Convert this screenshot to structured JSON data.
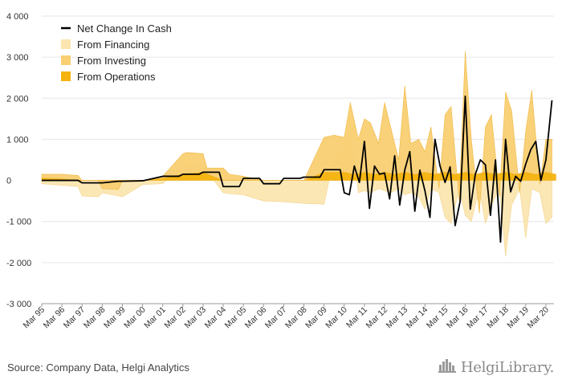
{
  "source": "Source: Company Data, Helgi Analytics",
  "logo": {
    "text": "HelgiLibrary.",
    "icon": "city-skyline-icon"
  },
  "colors": {
    "financing": "#fbe6b0",
    "investing": "#f9cf72",
    "operations": "#f4b30f",
    "net": "#000000",
    "grid": "#e6e6e6",
    "axis": "#999999"
  },
  "chart_data": {
    "type": "area",
    "title": "",
    "xlabel": "",
    "ylabel": "",
    "ylim": [
      -3000,
      4000
    ],
    "yticks": [
      "4 000",
      "3 000",
      "2 000",
      "1 000",
      "0",
      "-1 000",
      "-2 000",
      "-3 000"
    ],
    "ytick_values": [
      4000,
      3000,
      2000,
      1000,
      0,
      -1000,
      -2000,
      -3000
    ],
    "xticks": [
      "Mar 95",
      "Mar 96",
      "Mar 97",
      "Mar 98",
      "Mar 99",
      "Mar 00",
      "Mar 01",
      "Mar 02",
      "Mar 03",
      "Mar 04",
      "Mar 05",
      "Mar 06",
      "Mar 07",
      "Mar 08",
      "Mar 09",
      "Mar 10",
      "Mar 11",
      "Mar 12",
      "Mar 13",
      "Mar 14",
      "Mar 15",
      "Mar 16",
      "Mar 17",
      "Mar 18",
      "Mar 19",
      "Mar 20"
    ],
    "grid": true,
    "legend_position": "top-left",
    "legend": [
      "Net Change In Cash",
      "From Financing",
      "From Investing",
      "From Operations"
    ],
    "series": [
      {
        "name": "From Operations",
        "style": "area",
        "x": [
          1995,
          1996,
          1997,
          1998,
          1999,
          2000,
          2001,
          2002,
          2003,
          2004,
          2005,
          2006,
          2007,
          2008,
          2009,
          2009.5,
          2010,
          2010.5,
          2011,
          2011.5,
          2012,
          2012.5,
          2013,
          2013.5,
          2014,
          2014.5,
          2015,
          2015.5,
          2016,
          2016.5,
          2017,
          2017.5,
          2018,
          2018.5,
          2019,
          2019.5,
          2020,
          2020.5
        ],
        "values": [
          60,
          40,
          0,
          0,
          0,
          0,
          50,
          150,
          200,
          0,
          0,
          0,
          0,
          0,
          200,
          200,
          200,
          150,
          200,
          150,
          200,
          150,
          200,
          150,
          200,
          150,
          200,
          150,
          200,
          150,
          200,
          150,
          200,
          150,
          200,
          150,
          200,
          150
        ]
      },
      {
        "name": "From Investing",
        "style": "area",
        "x": [
          1995,
          1996,
          1996.8,
          1997,
          1997.8,
          1998,
          1998.8,
          1999,
          2000,
          2001,
          2002,
          2002.2,
          2003,
          2003.2,
          2004,
          2004.3,
          2005,
          2006,
          2007,
          2008,
          2009,
          2009.5,
          2010,
          2010.3,
          2010.7,
          2011,
          2011.3,
          2011.7,
          2012,
          2012.3,
          2012.7,
          2013,
          2013.3,
          2013.7,
          2014,
          2014.3,
          2014.7,
          2015,
          2015.3,
          2015.7,
          2016,
          2016.3,
          2016.7,
          2017,
          2017.3,
          2017.7,
          2018,
          2018.3,
          2018.7,
          2019,
          2019.3,
          2019.7,
          2020,
          2020.3
        ],
        "values": [
          150,
          150,
          120,
          0,
          0,
          -200,
          -220,
          0,
          0,
          100,
          650,
          680,
          650,
          300,
          300,
          150,
          100,
          0,
          0,
          0,
          1050,
          1100,
          1050,
          1900,
          1000,
          1500,
          1400,
          900,
          1900,
          1300,
          500,
          2300,
          900,
          1000,
          700,
          1300,
          -200,
          1600,
          1800,
          -500,
          3150,
          1000,
          -800,
          1300,
          1600,
          -400,
          2150,
          1700,
          -300,
          1200,
          2200,
          -100,
          1000,
          1000
        ]
      },
      {
        "name": "From Financing",
        "style": "area",
        "x": [
          1995,
          1996,
          1996.8,
          1997,
          1997.8,
          1998,
          1998.8,
          1999,
          2000,
          2001,
          2002,
          2002.2,
          2003,
          2004,
          2004.3,
          2005,
          2006,
          2007,
          2008,
          2009,
          2009.5,
          2010,
          2010.3,
          2010.7,
          2011,
          2011.3,
          2011.7,
          2012,
          2012.3,
          2012.7,
          2013,
          2013.3,
          2013.7,
          2014,
          2014.3,
          2014.7,
          2015,
          2015.3,
          2015.7,
          2016,
          2016.3,
          2016.7,
          2017,
          2017.3,
          2017.7,
          2018,
          2018.3,
          2018.7,
          2019,
          2019.3,
          2019.7,
          2020,
          2020.3
        ],
        "values": [
          -80,
          -120,
          -150,
          -380,
          -400,
          -300,
          -380,
          -400,
          -100,
          -80,
          400,
          400,
          350,
          -300,
          -320,
          -350,
          -500,
          -520,
          -560,
          -580,
          600,
          650,
          1400,
          -300,
          -250,
          -300,
          -200,
          -250,
          -300,
          -200,
          -350,
          -300,
          -400,
          -700,
          -200,
          -300,
          -900,
          -1050,
          -200,
          -850,
          -1000,
          -200,
          -1050,
          -600,
          -200,
          -1850,
          -600,
          -200,
          -1400,
          -200,
          -300,
          -1050,
          -900
        ]
      },
      {
        "name": "Net Change In Cash",
        "style": "line",
        "x": [
          1995,
          1996,
          1996.8,
          1997,
          1997.8,
          1998,
          1998.8,
          1999,
          2000,
          2001,
          2001.8,
          2002,
          2002.8,
          2003,
          2003.8,
          2004,
          2004.8,
          2005,
          2005.8,
          2006,
          2006.8,
          2007,
          2007.8,
          2008,
          2008.8,
          2009,
          2009.8,
          2010,
          2010.25,
          2010.5,
          2010.75,
          2011,
          2011.25,
          2011.5,
          2011.75,
          2012,
          2012.25,
          2012.5,
          2012.75,
          2013,
          2013.25,
          2013.5,
          2013.75,
          2014,
          2014.25,
          2014.5,
          2014.75,
          2015,
          2015.25,
          2015.5,
          2015.75,
          2016,
          2016.25,
          2016.5,
          2016.75,
          2017,
          2017.25,
          2017.5,
          2017.75,
          2018,
          2018.25,
          2018.5,
          2018.75,
          2019,
          2019.25,
          2019.5,
          2019.75,
          2020,
          2020.3
        ],
        "values": [
          0,
          0,
          0,
          -60,
          -60,
          -60,
          -20,
          -20,
          -10,
          100,
          100,
          150,
          150,
          200,
          200,
          -150,
          -150,
          50,
          50,
          -80,
          -80,
          50,
          50,
          80,
          80,
          260,
          260,
          -300,
          -350,
          350,
          -50,
          950,
          -680,
          350,
          150,
          180,
          -450,
          600,
          -600,
          250,
          700,
          -750,
          250,
          -250,
          -900,
          1000,
          350,
          -50,
          330,
          -1100,
          -500,
          2050,
          -700,
          150,
          500,
          380,
          -850,
          500,
          -1500,
          1000,
          -280,
          100,
          -20,
          400,
          750,
          950,
          0,
          500,
          1950
        ]
      }
    ]
  }
}
